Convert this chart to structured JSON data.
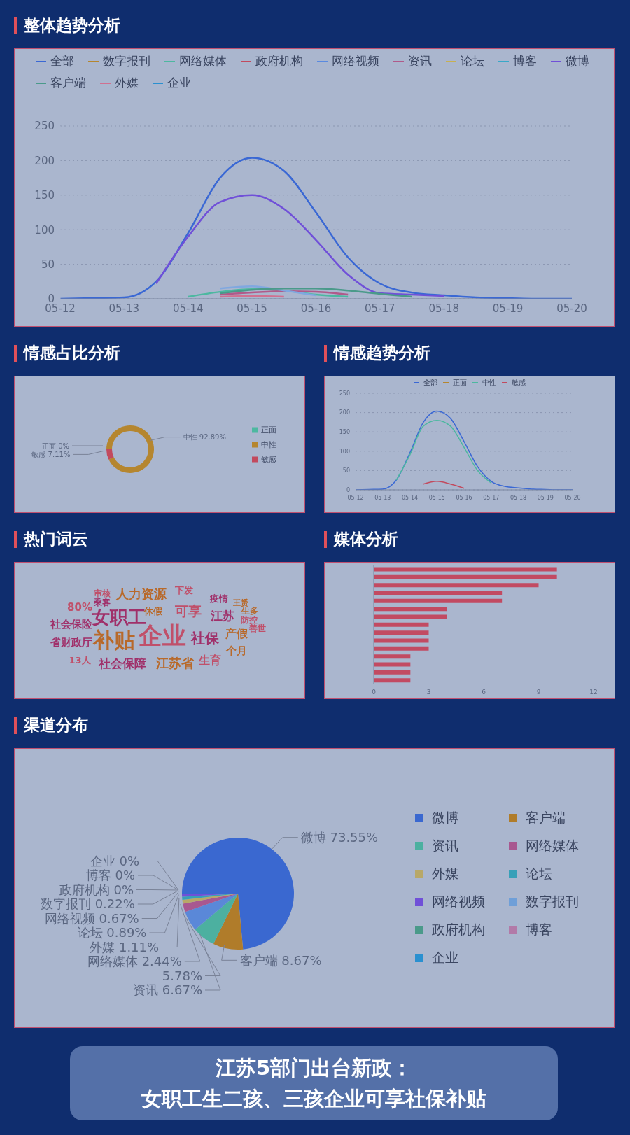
{
  "chart_data": [
    {
      "type": "line",
      "title": "整体趋势分析",
      "categories": [
        "05-12",
        null,
        "05-13",
        null,
        "05-14",
        null,
        "05-15",
        null,
        "05-16",
        null,
        "05-17",
        null,
        "05-18",
        null,
        "05-19",
        null,
        "05-20"
      ],
      "ylim": [
        0,
        250
      ],
      "yticks": [
        0,
        50,
        100,
        150,
        200,
        250
      ],
      "grid": "y",
      "legend": "top",
      "marker": "none",
      "series": [
        {
          "name": "全部",
          "color": "#3a68d4",
          "values": [
            0,
            1,
            2,
            25,
            95,
            175,
            204,
            185,
            125,
            60,
            22,
            9,
            5,
            2,
            1,
            0,
            0
          ]
        },
        {
          "name": "数字报刊",
          "color": "#b5862f",
          "values": [
            null,
            null,
            null,
            null,
            null,
            null,
            null,
            null,
            null,
            null,
            null,
            null,
            null,
            null,
            null,
            null,
            null
          ]
        },
        {
          "name": "网络媒体",
          "color": "#4cb8a0",
          "values": [
            null,
            null,
            null,
            null,
            3,
            10,
            14,
            12,
            6,
            3,
            null,
            null,
            null,
            null,
            null,
            null,
            null
          ]
        },
        {
          "name": "政府机构",
          "color": "#c24a5e",
          "values": [
            null,
            null,
            null,
            null,
            null,
            null,
            null,
            null,
            null,
            null,
            null,
            null,
            null,
            null,
            null,
            null,
            null
          ]
        },
        {
          "name": "网络视频",
          "color": "#5a8ae0",
          "values": [
            null,
            null,
            null,
            null,
            null,
            null,
            null,
            null,
            null,
            null,
            null,
            null,
            null,
            null,
            null,
            null,
            null
          ]
        },
        {
          "name": "资讯",
          "color": "#b05a8a",
          "values": [
            null,
            null,
            null,
            null,
            null,
            6,
            9,
            11,
            10,
            6,
            null,
            null,
            null,
            null,
            null,
            null,
            null
          ]
        },
        {
          "name": "论坛",
          "color": "#c8b050",
          "values": [
            null,
            null,
            null,
            null,
            null,
            null,
            null,
            null,
            null,
            null,
            null,
            null,
            null,
            null,
            null,
            null,
            null
          ]
        },
        {
          "name": "博客",
          "color": "#38a8c8",
          "values": [
            null,
            null,
            null,
            null,
            null,
            null,
            null,
            null,
            null,
            null,
            null,
            null,
            null,
            null,
            null,
            null,
            null
          ]
        },
        {
          "name": "微博",
          "color": "#7050d8",
          "values": [
            null,
            null,
            null,
            22,
            90,
            140,
            150,
            130,
            85,
            35,
            8,
            6,
            4,
            null,
            null,
            null,
            null
          ]
        },
        {
          "color": "#80a8e0",
          "values": [
            null,
            null,
            null,
            null,
            null,
            15,
            18,
            12,
            5,
            null,
            null,
            null,
            null,
            null,
            null,
            null,
            null
          ]
        },
        {
          "name": "客户端",
          "color": "#4a9a8a",
          "values": [
            null,
            null,
            null,
            null,
            null,
            8,
            13,
            15,
            15,
            12,
            7,
            3,
            null,
            null,
            null,
            null,
            null
          ]
        },
        {
          "name": "外媒",
          "color": "#d07090",
          "values": [
            null,
            null,
            null,
            null,
            null,
            3,
            4,
            3,
            null,
            null,
            null,
            null,
            null,
            null,
            null,
            null,
            null
          ]
        },
        {
          "name": "企业",
          "color": "#2a90d0",
          "values": [
            null,
            null,
            null,
            null,
            null,
            null,
            null,
            null,
            null,
            null,
            null,
            null,
            null,
            null,
            null,
            null,
            null
          ]
        }
      ]
    },
    {
      "type": "donut",
      "title": "情感占比分析",
      "categories": [
        "正面",
        "中性",
        "敏感"
      ],
      "values": [
        0,
        92.89,
        7.11
      ],
      "value_labels": [
        "0%",
        "92.89%",
        "7.11%"
      ],
      "colors": [
        "#4cb8a0",
        "#b5862f",
        "#c24a5e"
      ],
      "legend": "right"
    },
    {
      "type": "line",
      "title": "情感趋势分析",
      "categories": [
        "05-12",
        null,
        "05-13",
        null,
        "05-14",
        null,
        "05-15",
        null,
        "05-16",
        null,
        "05-17",
        null,
        "05-18",
        null,
        "05-19",
        null,
        "05-20"
      ],
      "ylim": [
        0,
        250
      ],
      "yticks": [
        0,
        50,
        100,
        150,
        200,
        250
      ],
      "grid": "y",
      "legend": "top",
      "marker": "none",
      "series": [
        {
          "name": "全部",
          "color": "#3a68d4",
          "values": [
            0,
            1,
            2,
            25,
            95,
            175,
            204,
            185,
            125,
            60,
            22,
            9,
            5,
            2,
            1,
            0,
            0
          ]
        },
        {
          "name": "正面",
          "color": "#b5862f",
          "values": [
            null,
            null,
            null,
            null,
            null,
            null,
            null,
            null,
            null,
            null,
            null,
            null,
            null,
            null,
            null,
            null,
            null
          ]
        },
        {
          "name": "中性",
          "color": "#4cb8a0",
          "values": [
            null,
            null,
            null,
            25,
            90,
            165,
            180,
            165,
            110,
            50,
            18,
            null,
            null,
            null,
            null,
            null,
            null
          ]
        },
        {
          "name": "敏感",
          "color": "#c24a5e",
          "values": [
            null,
            null,
            null,
            null,
            null,
            15,
            22,
            15,
            4,
            null,
            null,
            null,
            null,
            null,
            null,
            null,
            null
          ]
        }
      ]
    },
    {
      "type": "other",
      "title": "热门词云",
      "annotations": [
        "审核",
        "乘客",
        "人力资源",
        "下发",
        "疫情",
        "王赟",
        "80%",
        "女职工",
        "休假",
        "可享",
        "江苏",
        "生多",
        "防控",
        "社会保险",
        "补贴",
        "企业",
        "社保",
        "产假",
        "善世",
        "省财政厅",
        "个月",
        "13人",
        "社会保障",
        "江苏省",
        "生育"
      ]
    },
    {
      "type": "bar",
      "title": "媒体分析",
      "orientation": "horizontal",
      "categories": [
        null,
        null,
        null,
        null,
        null,
        null,
        null,
        null,
        null,
        null,
        null,
        null,
        null,
        null,
        null
      ],
      "values": [
        10,
        10,
        9,
        7,
        7,
        4,
        4,
        3,
        3,
        3,
        3,
        2,
        2,
        2,
        2
      ],
      "color": "#c24a62",
      "xlim": [
        0,
        12
      ],
      "xticks": [
        0,
        3,
        6,
        9,
        12
      ],
      "grid": false
    },
    {
      "type": "pie",
      "title": "渠道分布",
      "categories": [
        "微博",
        "客户端",
        "资讯",
        null,
        "网络媒体",
        "外媒",
        "论坛",
        "网络视频",
        "数字报刊",
        "政府机构",
        "博客",
        "企业"
      ],
      "values": [
        73.55,
        8.67,
        6.67,
        5.78,
        2.44,
        1.11,
        0.89,
        0.67,
        0.22,
        0,
        0,
        0
      ],
      "value_labels": [
        "73.55%",
        "8.67%",
        "6.67%",
        "5.78%",
        "2.44%",
        "1.11%",
        "0.89%",
        "0.67%",
        "0.22%",
        "0%",
        "0%",
        "0%"
      ],
      "colors": [
        "#3a68d0",
        "#b07c2a",
        "#4cb0a0",
        "#5a88d8",
        "#a85890",
        "#b8a868",
        "#38a0b8",
        "#7050d8",
        "#6f9fd8",
        "#4a9a8a",
        "#b27aa8",
        "#2a90d0"
      ],
      "legend": "right"
    },
    {
      "type": "other",
      "title": "江苏5部门出台新政：",
      "subtitle": "女职工生二孩、三孩企业可享社保补贴"
    }
  ]
}
